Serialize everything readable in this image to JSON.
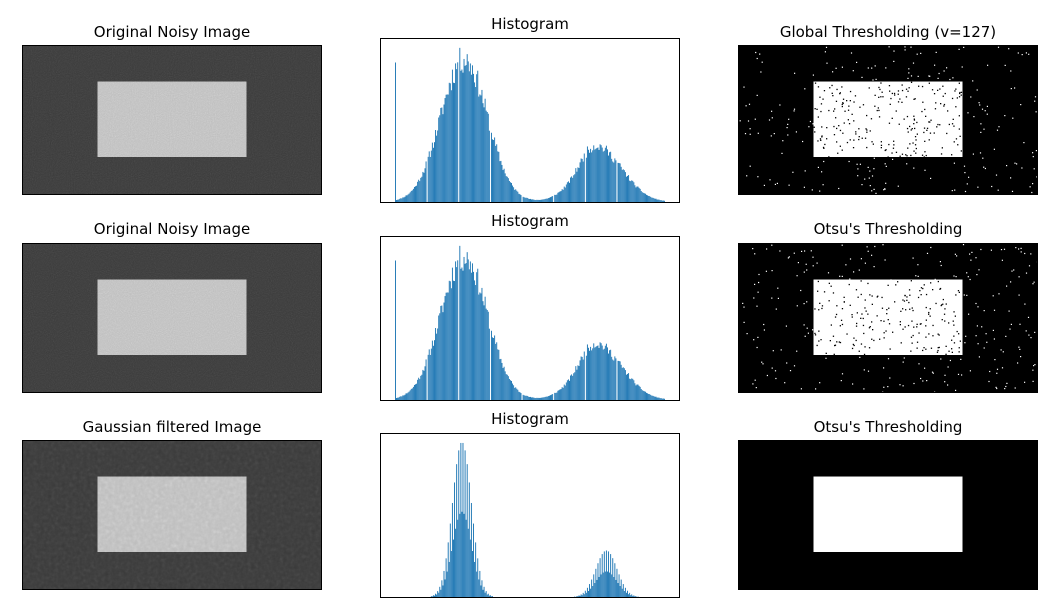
{
  "colors": {
    "bar": "#1f77b4",
    "dark": "#3a3a3a",
    "bright": "#bdbdbd"
  },
  "rows": [
    {
      "image_title": "Original Noisy Image",
      "hist_title": "Histogram",
      "result_title": "Global Thresholding (v=127)",
      "image_kind": "noisy",
      "result_kind": "noisy-threshold-global"
    },
    {
      "image_title": "Original Noisy Image",
      "hist_title": "Histogram",
      "result_title": "Otsu's Thresholding",
      "image_kind": "noisy",
      "result_kind": "noisy-threshold-otsu"
    },
    {
      "image_title": "Gaussian filtered Image",
      "hist_title": "Histogram",
      "result_title": "Otsu's Thresholding",
      "image_kind": "gaussian",
      "result_kind": "clean-threshold"
    }
  ],
  "chart_data": [
    {
      "type": "bar",
      "title": "Histogram",
      "x_range": [
        0,
        256
      ],
      "grid": false,
      "ticks_visible": false,
      "spike_at": 0,
      "gaps_at": [
        30,
        60,
        90,
        120,
        150,
        180,
        210
      ],
      "components": [
        {
          "mean": 65,
          "sd": 22,
          "height": 0.92
        },
        {
          "mean": 195,
          "sd": 22,
          "height": 0.32
        },
        {
          "mean": 185,
          "sd": 10,
          "height": 0.06
        }
      ]
    },
    {
      "type": "bar",
      "title": "Histogram",
      "x_range": [
        0,
        256
      ],
      "grid": false,
      "ticks_visible": false,
      "spike_at": 0,
      "gaps_at": [
        30,
        60,
        90,
        120,
        150,
        180,
        210
      ],
      "components": [
        {
          "mean": 65,
          "sd": 22,
          "height": 0.92
        },
        {
          "mean": 195,
          "sd": 22,
          "height": 0.32
        },
        {
          "mean": 185,
          "sd": 10,
          "height": 0.06
        }
      ]
    },
    {
      "type": "bar",
      "title": "Histogram",
      "x_range": [
        0,
        256
      ],
      "grid": false,
      "ticks_visible": false,
      "spike_at": null,
      "gaps_at": [],
      "components": [
        {
          "mean": 63,
          "sd": 9,
          "height": 1.0
        },
        {
          "mean": 200,
          "sd": 10,
          "height": 0.3
        }
      ]
    }
  ]
}
